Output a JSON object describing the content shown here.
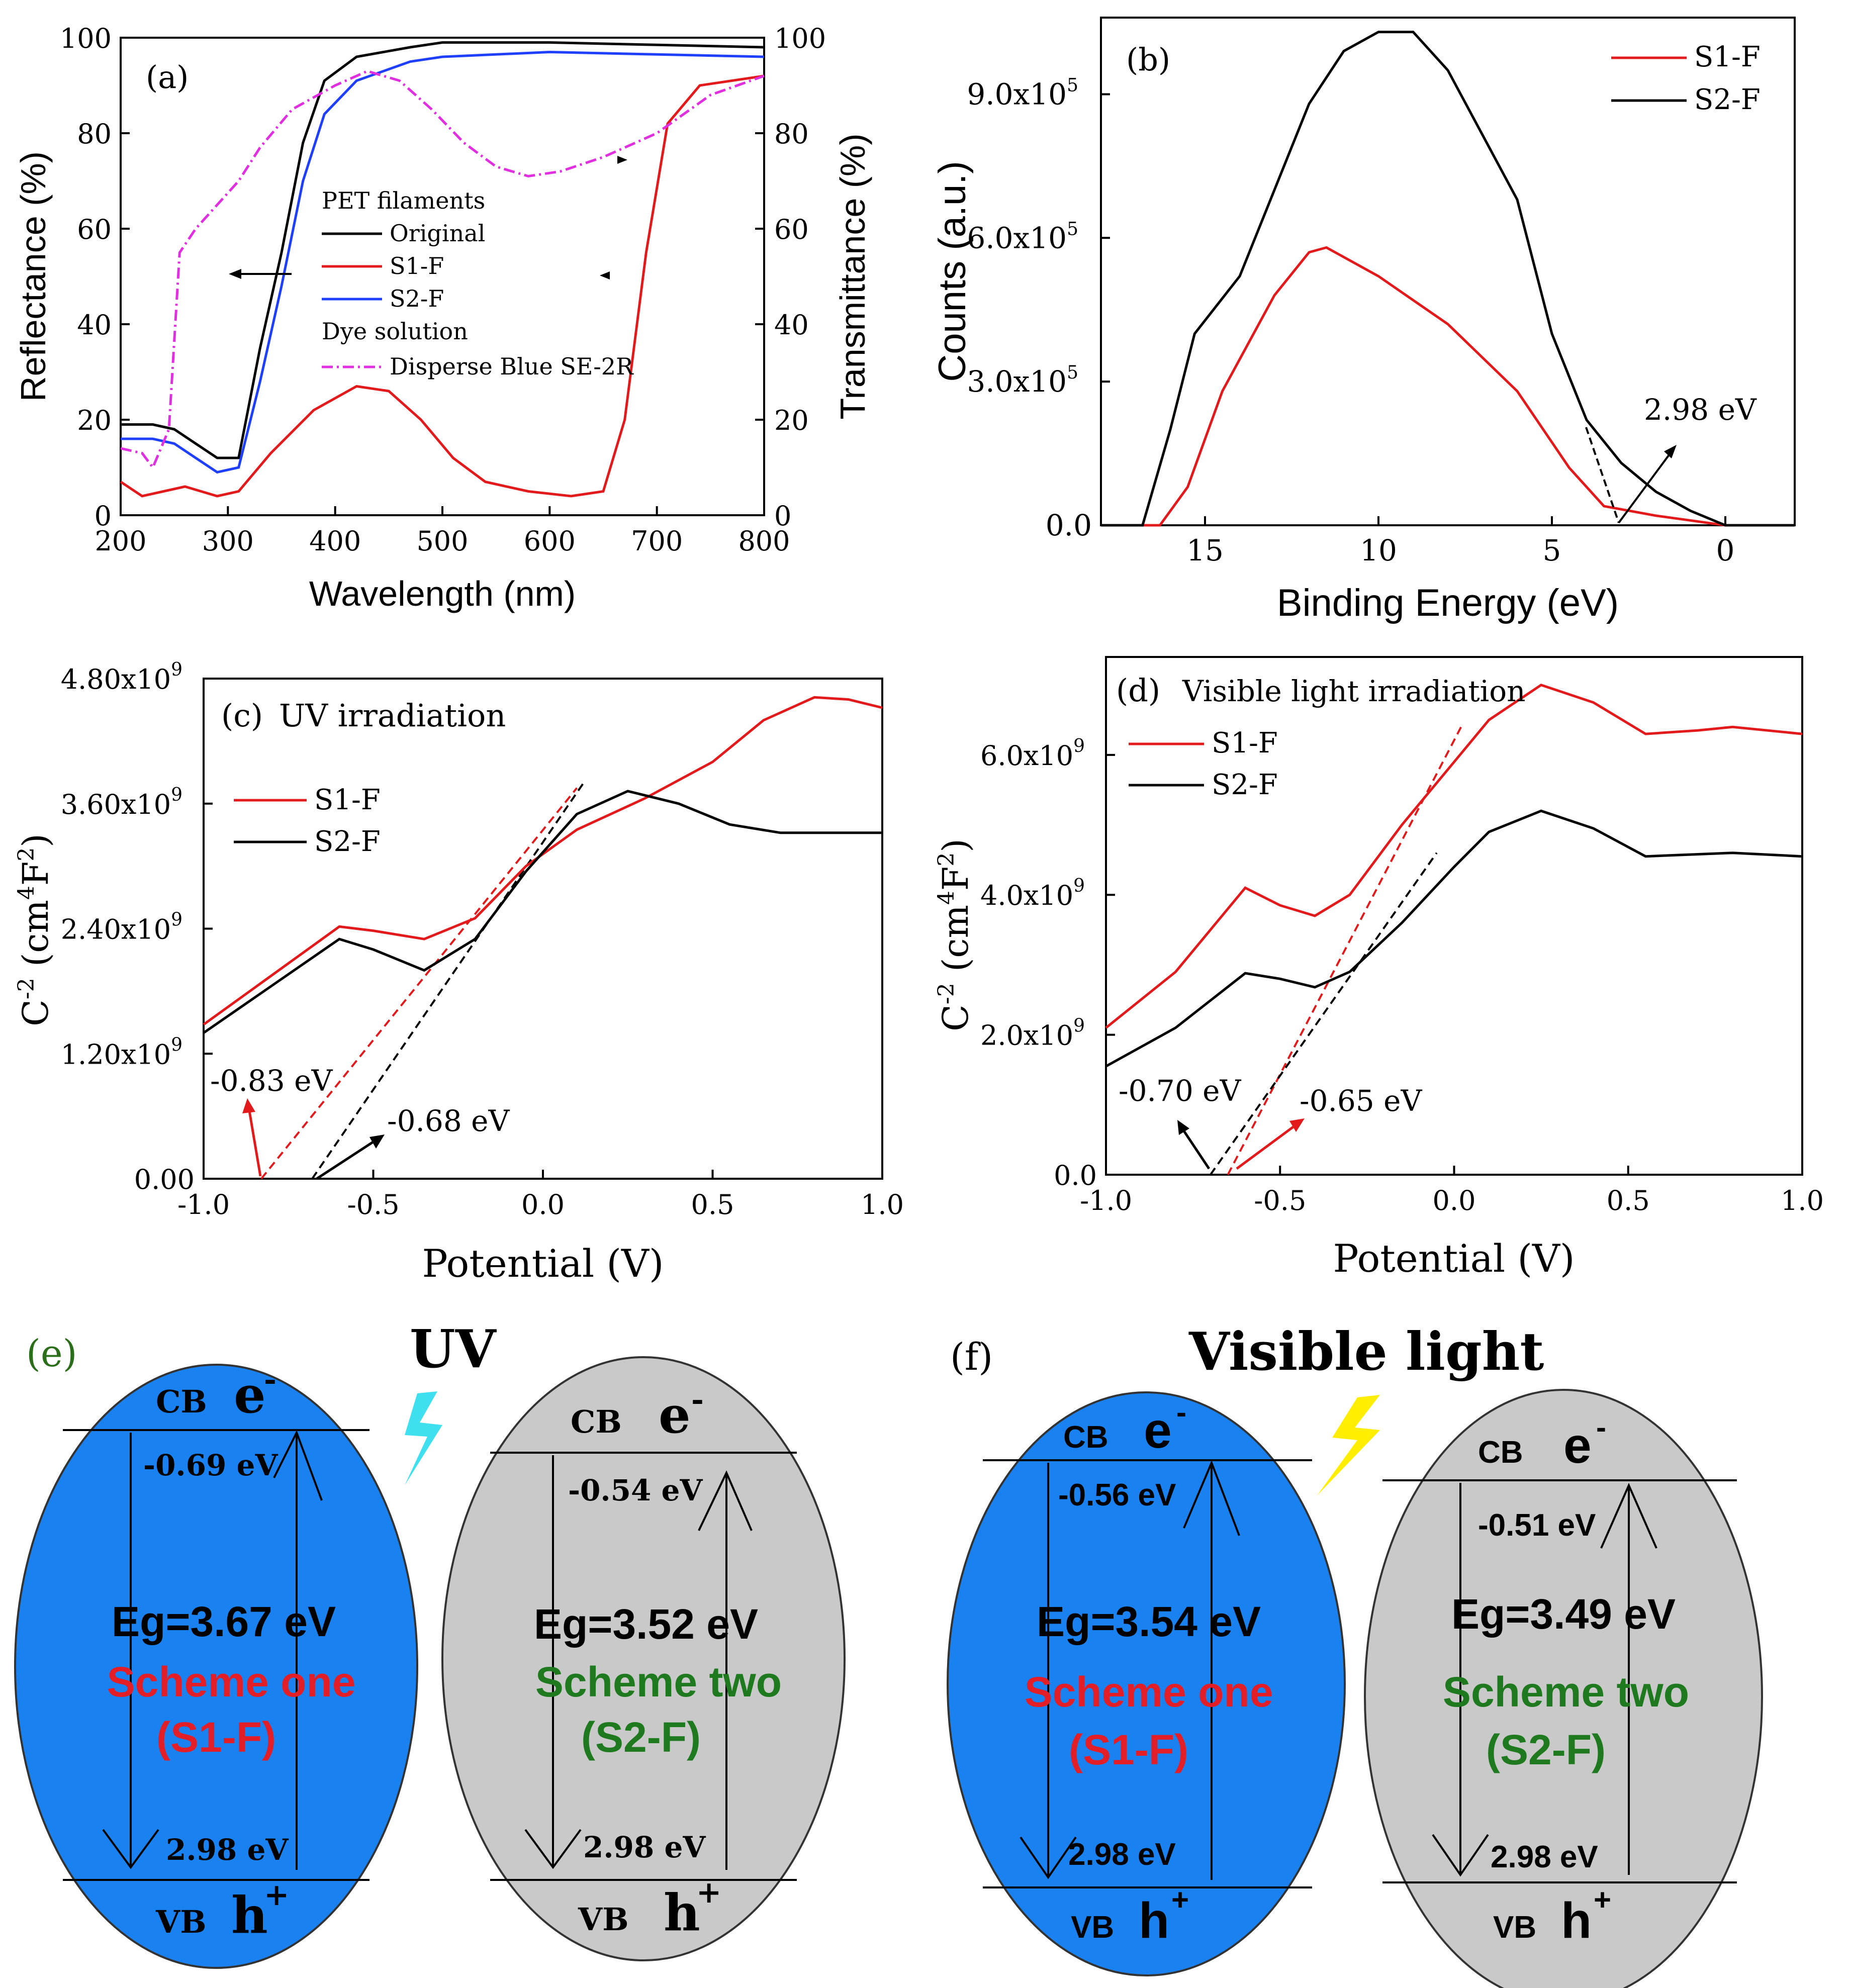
{
  "chart_data": [
    {
      "panel": "(a)",
      "type": "line",
      "xlabel": "Wavelength (nm)",
      "ylabel_left": "Reflectance (%)",
      "ylabel_right": "Transmittance (%)",
      "xlim": [
        200,
        800
      ],
      "ylim": [
        0,
        100
      ],
      "xticks": [
        "200",
        "300",
        "400",
        "500",
        "600",
        "700",
        "800"
      ],
      "yticks": [
        "0",
        "20",
        "40",
        "60",
        "80",
        "100"
      ],
      "legend_group1": "PET filaments",
      "legend_group2": "Dye solution",
      "series": [
        {
          "name": "Original",
          "color": "#000000",
          "dash": "",
          "points": [
            [
              200,
              19
            ],
            [
              230,
              19
            ],
            [
              250,
              18
            ],
            [
              270,
              15
            ],
            [
              290,
              12
            ],
            [
              310,
              12
            ],
            [
              330,
              35
            ],
            [
              350,
              55
            ],
            [
              370,
              78
            ],
            [
              390,
              91
            ],
            [
              420,
              96
            ],
            [
              470,
              98
            ],
            [
              500,
              99
            ],
            [
              600,
              99
            ],
            [
              700,
              98.5
            ],
            [
              800,
              98
            ]
          ]
        },
        {
          "name": "S1-F",
          "color": "#e31a1c",
          "dash": "",
          "points": [
            [
              200,
              7
            ],
            [
              220,
              4
            ],
            [
              240,
              5
            ],
            [
              260,
              6
            ],
            [
              290,
              4
            ],
            [
              310,
              5
            ],
            [
              340,
              13
            ],
            [
              380,
              22
            ],
            [
              420,
              27
            ],
            [
              450,
              26
            ],
            [
              480,
              20
            ],
            [
              510,
              12
            ],
            [
              540,
              7
            ],
            [
              580,
              5
            ],
            [
              620,
              4
            ],
            [
              650,
              5
            ],
            [
              670,
              20
            ],
            [
              690,
              55
            ],
            [
              710,
              82
            ],
            [
              740,
              90
            ],
            [
              800,
              92
            ]
          ]
        },
        {
          "name": "S2-F",
          "color": "#1f3fff",
          "dash": "",
          "points": [
            [
              200,
              16
            ],
            [
              230,
              16
            ],
            [
              250,
              15
            ],
            [
              270,
              12
            ],
            [
              290,
              9
            ],
            [
              310,
              10
            ],
            [
              330,
              28
            ],
            [
              350,
              48
            ],
            [
              370,
              70
            ],
            [
              390,
              84
            ],
            [
              420,
              91
            ],
            [
              470,
              95
            ],
            [
              500,
              96
            ],
            [
              600,
              97
            ],
            [
              700,
              96.5
            ],
            [
              800,
              96
            ]
          ]
        },
        {
          "name": "Disperse Blue SE-2R",
          "color": "#e02ee0",
          "dash": "22,8,4,8",
          "points": [
            [
              200,
              14
            ],
            [
              220,
              13
            ],
            [
              230,
              10
            ],
            [
              245,
              18
            ],
            [
              255,
              55
            ],
            [
              270,
              60
            ],
            [
              290,
              65
            ],
            [
              310,
              70
            ],
            [
              330,
              77
            ],
            [
              360,
              85
            ],
            [
              400,
              90
            ],
            [
              430,
              93
            ],
            [
              460,
              91
            ],
            [
              490,
              85
            ],
            [
              520,
              78
            ],
            [
              550,
              73
            ],
            [
              580,
              71
            ],
            [
              610,
              72
            ],
            [
              650,
              75
            ],
            [
              700,
              80
            ],
            [
              750,
              88
            ],
            [
              800,
              92
            ]
          ]
        }
      ],
      "annotations": [
        "left-arrow",
        "right-arrows"
      ]
    },
    {
      "panel": "(b)",
      "type": "line",
      "xlabel": "Binding Energy (eV)",
      "ylabel": "Counts (a.u.)",
      "xlim": [
        18,
        -2
      ],
      "ylim": [
        0,
        1.06
      ],
      "xticks": [
        "15",
        "10",
        "5",
        "0"
      ],
      "yticks": [
        "0.0",
        "3.0x10",
        "6.0x10",
        "9.0x10"
      ],
      "ytick_exp": "5",
      "series": [
        {
          "name": "S1-F",
          "color": "#e31a1c",
          "points": [
            [
              18,
              0
            ],
            [
              16.3,
              0
            ],
            [
              15.5,
              0.08
            ],
            [
              14.5,
              0.28
            ],
            [
              13,
              0.48
            ],
            [
              12,
              0.57
            ],
            [
              11.5,
              0.58
            ],
            [
              10,
              0.52
            ],
            [
              8,
              0.42
            ],
            [
              6,
              0.28
            ],
            [
              4.5,
              0.12
            ],
            [
              3.5,
              0.04
            ],
            [
              2,
              0.02
            ],
            [
              0,
              0
            ],
            [
              -2,
              0
            ]
          ]
        },
        {
          "name": "S2-F",
          "color": "#000000",
          "points": [
            [
              18,
              0
            ],
            [
              16.8,
              0
            ],
            [
              16,
              0.2
            ],
            [
              15.3,
              0.4
            ],
            [
              14,
              0.52
            ],
            [
              13,
              0.7
            ],
            [
              12,
              0.88
            ],
            [
              11,
              0.99
            ],
            [
              10,
              1.03
            ],
            [
              9,
              1.03
            ],
            [
              8,
              0.95
            ],
            [
              6,
              0.68
            ],
            [
              5,
              0.4
            ],
            [
              4,
              0.22
            ],
            [
              3,
              0.13
            ],
            [
              2,
              0.07
            ],
            [
              1,
              0.03
            ],
            [
              0,
              0
            ],
            [
              -2,
              0
            ]
          ]
        }
      ],
      "annotation": "2.98 eV"
    },
    {
      "panel": "(c)",
      "type": "line",
      "title": "UV irradiation",
      "xlabel": "Potential (V)",
      "ylabel": "C-2 (cm4F2)",
      "xlim": [
        -1.0,
        1.0
      ],
      "ylim": [
        0,
        4.8
      ],
      "xticks": [
        "-1.0",
        "-0.5",
        "0.0",
        "0.5",
        "1.0"
      ],
      "yticks": [
        "0.00",
        "1.20x10",
        "2.40x10",
        "3.60x10",
        "4.80x10"
      ],
      "ytick_exp": "9",
      "series": [
        {
          "name": "S1-F",
          "color": "#e31a1c",
          "points": [
            [
              -1.0,
              1.48
            ],
            [
              -0.8,
              1.95
            ],
            [
              -0.6,
              2.42
            ],
            [
              -0.5,
              2.38
            ],
            [
              -0.35,
              2.3
            ],
            [
              -0.2,
              2.5
            ],
            [
              -0.05,
              3.0
            ],
            [
              0.1,
              3.35
            ],
            [
              0.3,
              3.65
            ],
            [
              0.5,
              4.0
            ],
            [
              0.65,
              4.4
            ],
            [
              0.8,
              4.62
            ],
            [
              0.9,
              4.6
            ],
            [
              1.0,
              4.52
            ]
          ]
        },
        {
          "name": "S2-F",
          "color": "#000000",
          "points": [
            [
              -1.0,
              1.4
            ],
            [
              -0.8,
              1.85
            ],
            [
              -0.6,
              2.3
            ],
            [
              -0.5,
              2.2
            ],
            [
              -0.35,
              2.0
            ],
            [
              -0.2,
              2.3
            ],
            [
              -0.05,
              2.95
            ],
            [
              0.1,
              3.5
            ],
            [
              0.25,
              3.72
            ],
            [
              0.4,
              3.6
            ],
            [
              0.55,
              3.4
            ],
            [
              0.7,
              3.32
            ],
            [
              1.0,
              3.32
            ]
          ]
        }
      ],
      "intercepts": [
        "-0.83 eV",
        "-0.68 eV"
      ]
    },
    {
      "panel": "(d)",
      "type": "line",
      "title": "Visible light irradiation",
      "xlabel": "Potential (V)",
      "ylabel": "C-2 (cm4F2)",
      "xlim": [
        -1.0,
        1.0
      ],
      "ylim": [
        0,
        7.4
      ],
      "xticks": [
        "-1.0",
        "-0.5",
        "0.0",
        "0.5",
        "1.0"
      ],
      "yticks": [
        "0.0",
        "2.0x10",
        "4.0x10",
        "6.0x10"
      ],
      "ytick_exp": "9",
      "series": [
        {
          "name": "S1-F",
          "color": "#e31a1c",
          "points": [
            [
              -1.0,
              2.1
            ],
            [
              -0.8,
              2.9
            ],
            [
              -0.6,
              4.1
            ],
            [
              -0.5,
              3.85
            ],
            [
              -0.4,
              3.7
            ],
            [
              -0.3,
              4.0
            ],
            [
              -0.15,
              5.0
            ],
            [
              0.0,
              5.9
            ],
            [
              0.1,
              6.5
            ],
            [
              0.25,
              7.0
            ],
            [
              0.4,
              6.75
            ],
            [
              0.55,
              6.3
            ],
            [
              0.7,
              6.35
            ],
            [
              0.8,
              6.4
            ],
            [
              1.0,
              6.3
            ]
          ]
        },
        {
          "name": "S2-F",
          "color": "#000000",
          "points": [
            [
              -1.0,
              1.55
            ],
            [
              -0.8,
              2.1
            ],
            [
              -0.6,
              2.88
            ],
            [
              -0.5,
              2.8
            ],
            [
              -0.4,
              2.68
            ],
            [
              -0.3,
              2.9
            ],
            [
              -0.15,
              3.6
            ],
            [
              0.0,
              4.4
            ],
            [
              0.1,
              4.9
            ],
            [
              0.25,
              5.2
            ],
            [
              0.4,
              4.95
            ],
            [
              0.55,
              4.55
            ],
            [
              0.7,
              4.58
            ],
            [
              0.8,
              4.6
            ],
            [
              1.0,
              4.55
            ]
          ]
        }
      ],
      "intercepts": [
        "-0.70 eV",
        "-0.65 eV"
      ]
    }
  ],
  "schemes": {
    "e": {
      "panel_label": "(e)",
      "light_label": "UV",
      "left": {
        "cb": "CB",
        "vb": "VB",
        "e": "e",
        "h": "h",
        "cb_value": "-0.69 eV",
        "vb_value": "2.98 eV",
        "eg": "Eg=3.67 eV",
        "name": "Scheme one",
        "code": "(S1-F)"
      },
      "right": {
        "cb": "CB",
        "vb": "VB",
        "e": "e",
        "h": "h",
        "cb_value": "-0.54 eV",
        "vb_value": "2.98 eV",
        "eg": "Eg=3.52 eV",
        "name": "Scheme two",
        "code": "(S2-F)"
      }
    },
    "f": {
      "panel_label": "(f)",
      "light_label": "Visible light",
      "left": {
        "cb": "CB",
        "vb": "VB",
        "e": "e",
        "h": "h",
        "cb_value": "-0.56 eV",
        "vb_value": "2.98 eV",
        "eg": "Eg=3.54 eV",
        "name": "Scheme one",
        "code": "(S1-F)"
      },
      "right": {
        "cb": "CB",
        "vb": "VB",
        "e": "e",
        "h": "h",
        "cb_value": "-0.51 eV",
        "vb_value": "2.98 eV",
        "eg": "Eg=3.49 eV",
        "name": "Scheme two",
        "code": "(S2-F)"
      }
    }
  },
  "colors": {
    "s1": "#e31a1c",
    "s2": "#000000",
    "blue_oval": "#1a82f0",
    "gray_oval": "#c9c9c9",
    "scheme_one_text": "#e41e26",
    "scheme_two_text": "#1f7a1f",
    "uv_bolt": "#3ee0f0",
    "visible_bolt": "#ffee00",
    "panel_e_label": "#2a6e1a"
  }
}
